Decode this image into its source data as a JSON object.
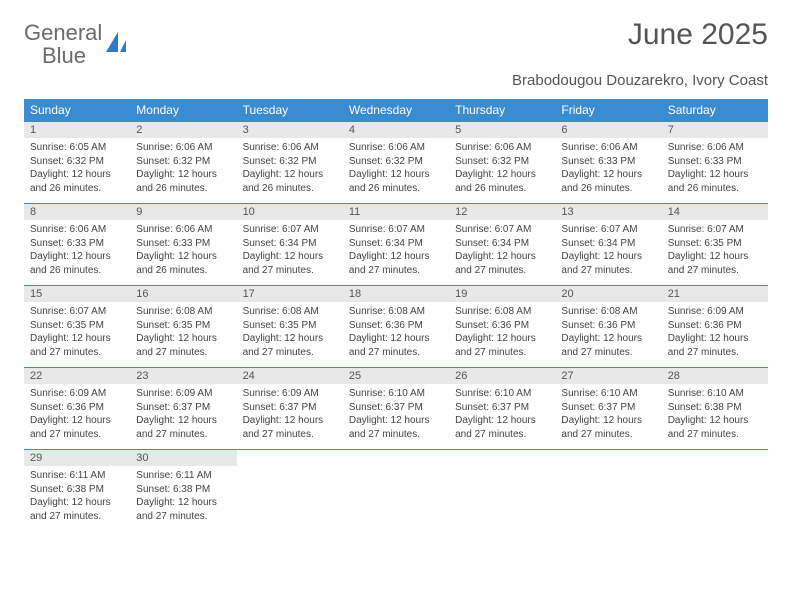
{
  "logo": {
    "text_general": "General",
    "text_blue": "Blue"
  },
  "title": "June 2025",
  "location": "Brabodougou Douzarekro, Ivory Coast",
  "colors": {
    "header_bg": "#3b8bd0",
    "header_text": "#ffffff",
    "daynum_bg": "#e8e8e8",
    "rule": "#3b8bd0",
    "body_text": "#444444",
    "title_text": "#555555",
    "logo_gray": "#6b6b6b",
    "logo_blue": "#2f7ac6",
    "background": "#ffffff"
  },
  "typography": {
    "title_fontsize": 30,
    "location_fontsize": 15,
    "header_fontsize": 12,
    "daynum_fontsize": 11,
    "cell_fontsize": 10,
    "font_family": "Arial"
  },
  "weekday_headers": [
    "Sunday",
    "Monday",
    "Tuesday",
    "Wednesday",
    "Thursday",
    "Friday",
    "Saturday"
  ],
  "weeks": [
    [
      {
        "n": "1",
        "sunrise": "Sunrise: 6:05 AM",
        "sunset": "Sunset: 6:32 PM",
        "day1": "Daylight: 12 hours",
        "day2": "and 26 minutes."
      },
      {
        "n": "2",
        "sunrise": "Sunrise: 6:06 AM",
        "sunset": "Sunset: 6:32 PM",
        "day1": "Daylight: 12 hours",
        "day2": "and 26 minutes."
      },
      {
        "n": "3",
        "sunrise": "Sunrise: 6:06 AM",
        "sunset": "Sunset: 6:32 PM",
        "day1": "Daylight: 12 hours",
        "day2": "and 26 minutes."
      },
      {
        "n": "4",
        "sunrise": "Sunrise: 6:06 AM",
        "sunset": "Sunset: 6:32 PM",
        "day1": "Daylight: 12 hours",
        "day2": "and 26 minutes."
      },
      {
        "n": "5",
        "sunrise": "Sunrise: 6:06 AM",
        "sunset": "Sunset: 6:32 PM",
        "day1": "Daylight: 12 hours",
        "day2": "and 26 minutes."
      },
      {
        "n": "6",
        "sunrise": "Sunrise: 6:06 AM",
        "sunset": "Sunset: 6:33 PM",
        "day1": "Daylight: 12 hours",
        "day2": "and 26 minutes."
      },
      {
        "n": "7",
        "sunrise": "Sunrise: 6:06 AM",
        "sunset": "Sunset: 6:33 PM",
        "day1": "Daylight: 12 hours",
        "day2": "and 26 minutes."
      }
    ],
    [
      {
        "n": "8",
        "sunrise": "Sunrise: 6:06 AM",
        "sunset": "Sunset: 6:33 PM",
        "day1": "Daylight: 12 hours",
        "day2": "and 26 minutes."
      },
      {
        "n": "9",
        "sunrise": "Sunrise: 6:06 AM",
        "sunset": "Sunset: 6:33 PM",
        "day1": "Daylight: 12 hours",
        "day2": "and 26 minutes."
      },
      {
        "n": "10",
        "sunrise": "Sunrise: 6:07 AM",
        "sunset": "Sunset: 6:34 PM",
        "day1": "Daylight: 12 hours",
        "day2": "and 27 minutes."
      },
      {
        "n": "11",
        "sunrise": "Sunrise: 6:07 AM",
        "sunset": "Sunset: 6:34 PM",
        "day1": "Daylight: 12 hours",
        "day2": "and 27 minutes."
      },
      {
        "n": "12",
        "sunrise": "Sunrise: 6:07 AM",
        "sunset": "Sunset: 6:34 PM",
        "day1": "Daylight: 12 hours",
        "day2": "and 27 minutes."
      },
      {
        "n": "13",
        "sunrise": "Sunrise: 6:07 AM",
        "sunset": "Sunset: 6:34 PM",
        "day1": "Daylight: 12 hours",
        "day2": "and 27 minutes."
      },
      {
        "n": "14",
        "sunrise": "Sunrise: 6:07 AM",
        "sunset": "Sunset: 6:35 PM",
        "day1": "Daylight: 12 hours",
        "day2": "and 27 minutes."
      }
    ],
    [
      {
        "n": "15",
        "sunrise": "Sunrise: 6:07 AM",
        "sunset": "Sunset: 6:35 PM",
        "day1": "Daylight: 12 hours",
        "day2": "and 27 minutes."
      },
      {
        "n": "16",
        "sunrise": "Sunrise: 6:08 AM",
        "sunset": "Sunset: 6:35 PM",
        "day1": "Daylight: 12 hours",
        "day2": "and 27 minutes."
      },
      {
        "n": "17",
        "sunrise": "Sunrise: 6:08 AM",
        "sunset": "Sunset: 6:35 PM",
        "day1": "Daylight: 12 hours",
        "day2": "and 27 minutes."
      },
      {
        "n": "18",
        "sunrise": "Sunrise: 6:08 AM",
        "sunset": "Sunset: 6:36 PM",
        "day1": "Daylight: 12 hours",
        "day2": "and 27 minutes."
      },
      {
        "n": "19",
        "sunrise": "Sunrise: 6:08 AM",
        "sunset": "Sunset: 6:36 PM",
        "day1": "Daylight: 12 hours",
        "day2": "and 27 minutes."
      },
      {
        "n": "20",
        "sunrise": "Sunrise: 6:08 AM",
        "sunset": "Sunset: 6:36 PM",
        "day1": "Daylight: 12 hours",
        "day2": "and 27 minutes."
      },
      {
        "n": "21",
        "sunrise": "Sunrise: 6:09 AM",
        "sunset": "Sunset: 6:36 PM",
        "day1": "Daylight: 12 hours",
        "day2": "and 27 minutes."
      }
    ],
    [
      {
        "n": "22",
        "sunrise": "Sunrise: 6:09 AM",
        "sunset": "Sunset: 6:36 PM",
        "day1": "Daylight: 12 hours",
        "day2": "and 27 minutes."
      },
      {
        "n": "23",
        "sunrise": "Sunrise: 6:09 AM",
        "sunset": "Sunset: 6:37 PM",
        "day1": "Daylight: 12 hours",
        "day2": "and 27 minutes."
      },
      {
        "n": "24",
        "sunrise": "Sunrise: 6:09 AM",
        "sunset": "Sunset: 6:37 PM",
        "day1": "Daylight: 12 hours",
        "day2": "and 27 minutes."
      },
      {
        "n": "25",
        "sunrise": "Sunrise: 6:10 AM",
        "sunset": "Sunset: 6:37 PM",
        "day1": "Daylight: 12 hours",
        "day2": "and 27 minutes."
      },
      {
        "n": "26",
        "sunrise": "Sunrise: 6:10 AM",
        "sunset": "Sunset: 6:37 PM",
        "day1": "Daylight: 12 hours",
        "day2": "and 27 minutes."
      },
      {
        "n": "27",
        "sunrise": "Sunrise: 6:10 AM",
        "sunset": "Sunset: 6:37 PM",
        "day1": "Daylight: 12 hours",
        "day2": "and 27 minutes."
      },
      {
        "n": "28",
        "sunrise": "Sunrise: 6:10 AM",
        "sunset": "Sunset: 6:38 PM",
        "day1": "Daylight: 12 hours",
        "day2": "and 27 minutes."
      }
    ],
    [
      {
        "n": "29",
        "sunrise": "Sunrise: 6:11 AM",
        "sunset": "Sunset: 6:38 PM",
        "day1": "Daylight: 12 hours",
        "day2": "and 27 minutes."
      },
      {
        "n": "30",
        "sunrise": "Sunrise: 6:11 AM",
        "sunset": "Sunset: 6:38 PM",
        "day1": "Daylight: 12 hours",
        "day2": "and 27 minutes."
      },
      null,
      null,
      null,
      null,
      null
    ]
  ]
}
